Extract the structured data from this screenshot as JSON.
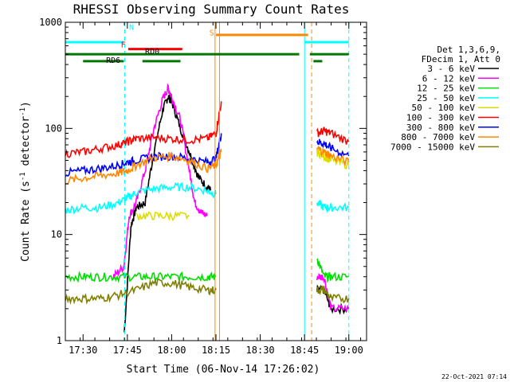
{
  "chart_data": {
    "type": "line",
    "title": "RHESSI Observing Summary Count Rates",
    "xlabel": "Start Time (06-Nov-14 17:26:02)",
    "ylabel_main": "Count Rate (s",
    "ylabel_sup1": "-1",
    "ylabel_mid": " detector",
    "ylabel_sup2": "-1",
    "ylabel_end": ")",
    "date_stamp": "22-Oct-2021 07:14",
    "y_scale": "log",
    "ylim": [
      1,
      1000
    ],
    "xlim_minutes": [
      17.4,
      19.1
    ],
    "x_ticks": [
      {
        "value": "17:30",
        "t": 17.5
      },
      {
        "value": "17:45",
        "t": 17.75
      },
      {
        "value": "18:00",
        "t": 18.0
      },
      {
        "value": "18:15",
        "t": 18.25
      },
      {
        "value": "18:30",
        "t": 18.5
      },
      {
        "value": "18:45",
        "t": 18.75
      },
      {
        "value": "19:00",
        "t": 19.0
      }
    ],
    "y_ticks": [
      {
        "label": "1",
        "value": 1
      },
      {
        "label": "10",
        "value": 10
      },
      {
        "label": "100",
        "value": 100
      },
      {
        "label": "1000",
        "value": 1000
      }
    ],
    "legend": {
      "header": [
        "Det 1,3,6,9,",
        "FDecim 1, Att 0"
      ],
      "placement": "right"
    },
    "series": [
      {
        "name": "3 - 6 keV",
        "color": "#000000",
        "segments": [
          [
            [
              17.733,
              1.2
            ],
            [
              17.77,
              12
            ],
            [
              17.8,
              18
            ],
            [
              17.85,
              20
            ],
            [
              17.9,
              60
            ],
            [
              17.95,
              150
            ],
            [
              17.98,
              200
            ],
            [
              18.0,
              180
            ],
            [
              18.05,
              100
            ],
            [
              18.1,
              60
            ],
            [
              18.15,
              35
            ],
            [
              18.2,
              28
            ],
            [
              18.22,
              26
            ]
          ],
          [
            [
              18.82,
              3
            ],
            [
              18.86,
              3
            ],
            [
              18.9,
              2
            ],
            [
              19.0,
              2
            ]
          ]
        ]
      },
      {
        "name": "6 - 12 keV",
        "color": "#ff00ff",
        "segments": [
          [
            [
              17.67,
              4
            ],
            [
              17.73,
              5
            ],
            [
              17.76,
              15
            ],
            [
              17.8,
              20
            ],
            [
              17.85,
              40
            ],
            [
              17.9,
              100
            ],
            [
              17.95,
              190
            ],
            [
              17.98,
              240
            ],
            [
              18.0,
              200
            ],
            [
              18.05,
              120
            ],
            [
              18.1,
              40
            ],
            [
              18.13,
              20
            ],
            [
              18.17,
              16
            ],
            [
              18.2,
              15
            ]
          ],
          [
            [
              18.82,
              4
            ],
            [
              18.86,
              4
            ],
            [
              18.9,
              2
            ],
            [
              19.0,
              2
            ]
          ]
        ]
      },
      {
        "name": "12 - 25 keV",
        "color": "#00dd00",
        "segments": [
          [
            [
              17.4,
              4
            ],
            [
              17.5,
              4
            ],
            [
              17.6,
              4
            ],
            [
              17.7,
              4
            ],
            [
              17.8,
              4
            ],
            [
              17.9,
              4
            ],
            [
              18.0,
              4
            ],
            [
              18.1,
              4
            ],
            [
              18.2,
              4
            ],
            [
              18.25,
              4
            ]
          ],
          [
            [
              18.82,
              6
            ],
            [
              18.86,
              4
            ],
            [
              18.9,
              4
            ],
            [
              19.0,
              4
            ]
          ]
        ]
      },
      {
        "name": "25 - 50 keV",
        "color": "#00ffff",
        "segments": [
          [
            [
              17.4,
              17
            ],
            [
              17.5,
              18
            ],
            [
              17.6,
              18
            ],
            [
              17.7,
              20
            ],
            [
              17.75,
              22
            ],
            [
              17.8,
              25
            ],
            [
              17.9,
              27
            ],
            [
              18.0,
              28
            ],
            [
              18.1,
              28
            ],
            [
              18.2,
              26
            ],
            [
              18.25,
              24
            ]
          ],
          [
            [
              18.82,
              20
            ],
            [
              18.86,
              18
            ],
            [
              18.9,
              18
            ],
            [
              19.0,
              18
            ]
          ]
        ]
      },
      {
        "name": "50 - 100 keV",
        "color": "#dddd00",
        "segments": [
          [
            [
              17.8,
              15
            ],
            [
              17.9,
              15
            ],
            [
              18.0,
              15
            ],
            [
              18.1,
              15
            ]
          ],
          [
            [
              18.82,
              60
            ],
            [
              18.86,
              55
            ],
            [
              18.9,
              50
            ],
            [
              19.0,
              45
            ]
          ]
        ]
      },
      {
        "name": "100 - 300 keV",
        "color": "#ff0000",
        "segments": [
          [
            [
              17.4,
              58
            ],
            [
              17.5,
              60
            ],
            [
              17.6,
              65
            ],
            [
              17.7,
              70
            ],
            [
              17.75,
              75
            ],
            [
              17.8,
              80
            ],
            [
              17.9,
              82
            ],
            [
              18.0,
              80
            ],
            [
              18.1,
              78
            ],
            [
              18.2,
              80
            ],
            [
              18.25,
              90
            ],
            [
              18.28,
              180
            ]
          ],
          [
            [
              18.82,
              90
            ],
            [
              18.86,
              95
            ],
            [
              18.9,
              90
            ],
            [
              19.0,
              75
            ]
          ]
        ]
      },
      {
        "name": "300 - 800 keV",
        "color": "#0000ff",
        "segments": [
          [
            [
              17.4,
              38
            ],
            [
              17.5,
              40
            ],
            [
              17.6,
              42
            ],
            [
              17.7,
              45
            ],
            [
              17.75,
              48
            ],
            [
              17.8,
              50
            ],
            [
              17.9,
              54
            ],
            [
              18.0,
              55
            ],
            [
              18.1,
              52
            ],
            [
              18.2,
              48
            ],
            [
              18.25,
              52
            ],
            [
              18.28,
              90
            ]
          ],
          [
            [
              18.82,
              75
            ],
            [
              18.86,
              72
            ],
            [
              18.9,
              65
            ],
            [
              19.0,
              55
            ]
          ]
        ]
      },
      {
        "name": "800 - 7000 keV",
        "color": "#ff8800",
        "segments": [
          [
            [
              17.4,
              32
            ],
            [
              17.5,
              34
            ],
            [
              17.6,
              36
            ],
            [
              17.7,
              38
            ],
            [
              17.75,
              40
            ],
            [
              17.8,
              45
            ],
            [
              17.9,
              53
            ],
            [
              18.0,
              55
            ],
            [
              18.1,
              50
            ],
            [
              18.2,
              42
            ],
            [
              18.25,
              45
            ],
            [
              18.28,
              60
            ]
          ],
          [
            [
              18.82,
              65
            ],
            [
              18.86,
              60
            ],
            [
              18.9,
              55
            ],
            [
              19.0,
              48
            ]
          ]
        ]
      },
      {
        "name": "7000 - 15000 keV",
        "color": "#808000",
        "segments": [
          [
            [
              17.4,
              2.5
            ],
            [
              17.5,
              2.5
            ],
            [
              17.6,
              2.5
            ],
            [
              17.7,
              2.7
            ],
            [
              17.8,
              3
            ],
            [
              17.9,
              3.5
            ],
            [
              18.0,
              3.5
            ],
            [
              18.1,
              3.2
            ],
            [
              18.2,
              3
            ],
            [
              18.25,
              3
            ]
          ],
          [
            [
              18.82,
              3
            ],
            [
              18.86,
              3
            ],
            [
              18.9,
              2.5
            ],
            [
              19.0,
              2.5
            ]
          ]
        ]
      }
    ],
    "markers": [
      {
        "label": "N",
        "color": "#00ffff"
      },
      {
        "label": "F",
        "color": "#ff0000"
      },
      {
        "label": "RD0",
        "color": "#000000"
      },
      {
        "label": "RD6",
        "color": "#000000"
      },
      {
        "label": "S",
        "color": "#ff8800"
      }
    ],
    "flag_bars": [
      {
        "name": "night",
        "color": "#00ffff",
        "y": 650,
        "ranges": [
          [
            17.4,
            17.73
          ],
          [
            18.75,
            19.0
          ]
        ]
      },
      {
        "name": "flare",
        "color": "#ff0000",
        "y": 560,
        "ranges": [
          [
            17.755,
            18.06
          ]
        ]
      },
      {
        "name": "saa",
        "color": "#ff8800",
        "y": 760,
        "ranges": [
          [
            18.25,
            18.77
          ]
        ]
      },
      {
        "name": "decim-upper",
        "color": "#007700",
        "y": 500,
        "ranges": [
          [
            17.4,
            18.72
          ],
          [
            18.78,
            19.0
          ]
        ]
      },
      {
        "name": "decim-lower",
        "color": "#007700",
        "y": 430,
        "ranges": [
          [
            17.5,
            17.73
          ],
          [
            17.835,
            18.05
          ],
          [
            18.8,
            18.85
          ]
        ]
      }
    ],
    "vlines": [
      {
        "t": 17.735,
        "color": "#00ffff",
        "style": "dashed"
      },
      {
        "t": 18.245,
        "color": "#ff8800",
        "style": "solid"
      },
      {
        "t": 18.27,
        "color": "#ff8800",
        "style": "solid"
      },
      {
        "t": 18.75,
        "color": "#00ffff",
        "style": "solid"
      },
      {
        "t": 18.79,
        "color": "#ff8800",
        "style": "dashed"
      },
      {
        "t": 19.0,
        "color": "#00ffff",
        "style": "dashed"
      }
    ]
  }
}
